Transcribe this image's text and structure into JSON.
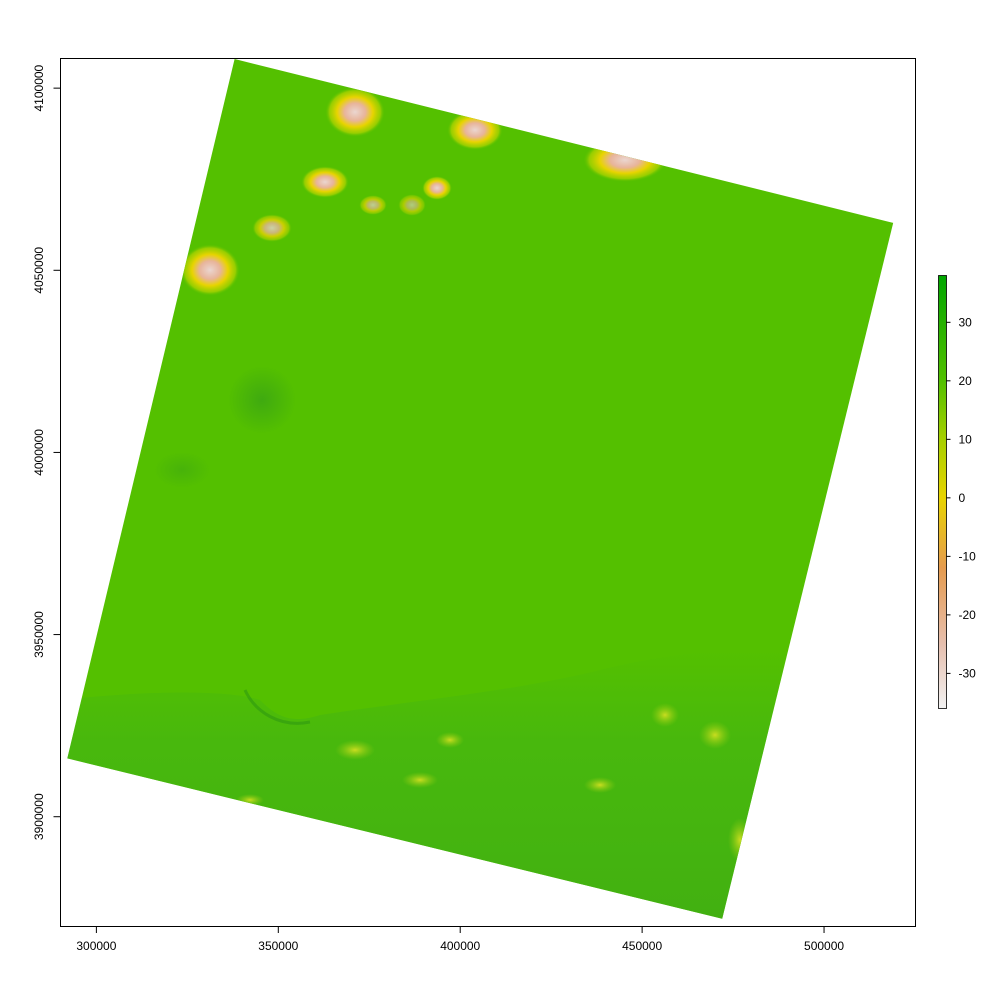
{
  "chart_data": {
    "type": "heatmap",
    "title": "",
    "xlabel": "",
    "ylabel": "",
    "xlim": [
      290000,
      525000
    ],
    "ylim": [
      3870000,
      4108000
    ],
    "x_ticks": [
      300000,
      350000,
      400000,
      450000,
      500000
    ],
    "x_tick_labels": [
      "300000",
      "350000",
      "400000",
      "450000",
      "500000"
    ],
    "y_ticks": [
      3900000,
      3950000,
      4000000,
      4050000,
      4100000
    ],
    "y_tick_labels": [
      "3900000",
      "3950000",
      "4000000",
      "4050000",
      "4100000"
    ],
    "raster_extent_corners": [
      {
        "x": 338000,
        "y": 4108000
      },
      {
        "x": 519000,
        "y": 4063000
      },
      {
        "x": 472000,
        "y": 3872000
      },
      {
        "x": 292000,
        "y": 3916000
      }
    ],
    "value_range": [
      -36,
      38
    ],
    "legend": {
      "position": "right",
      "ticks": [
        30,
        20,
        10,
        0,
        -10,
        -20,
        -30
      ],
      "tick_labels": [
        "30",
        "20",
        "10",
        "0",
        "-10",
        "-20",
        "-30"
      ],
      "colors": [
        {
          "value": -36,
          "color": "#f2f2f2"
        },
        {
          "value": -25,
          "color": "#e6bfae"
        },
        {
          "value": -12,
          "color": "#e59b4f"
        },
        {
          "value": 0,
          "color": "#e8d400"
        },
        {
          "value": 10,
          "color": "#a7d000"
        },
        {
          "value": 20,
          "color": "#52c000"
        },
        {
          "value": 38,
          "color": "#00a600"
        }
      ]
    },
    "dominant_value": 20,
    "grid": false
  }
}
